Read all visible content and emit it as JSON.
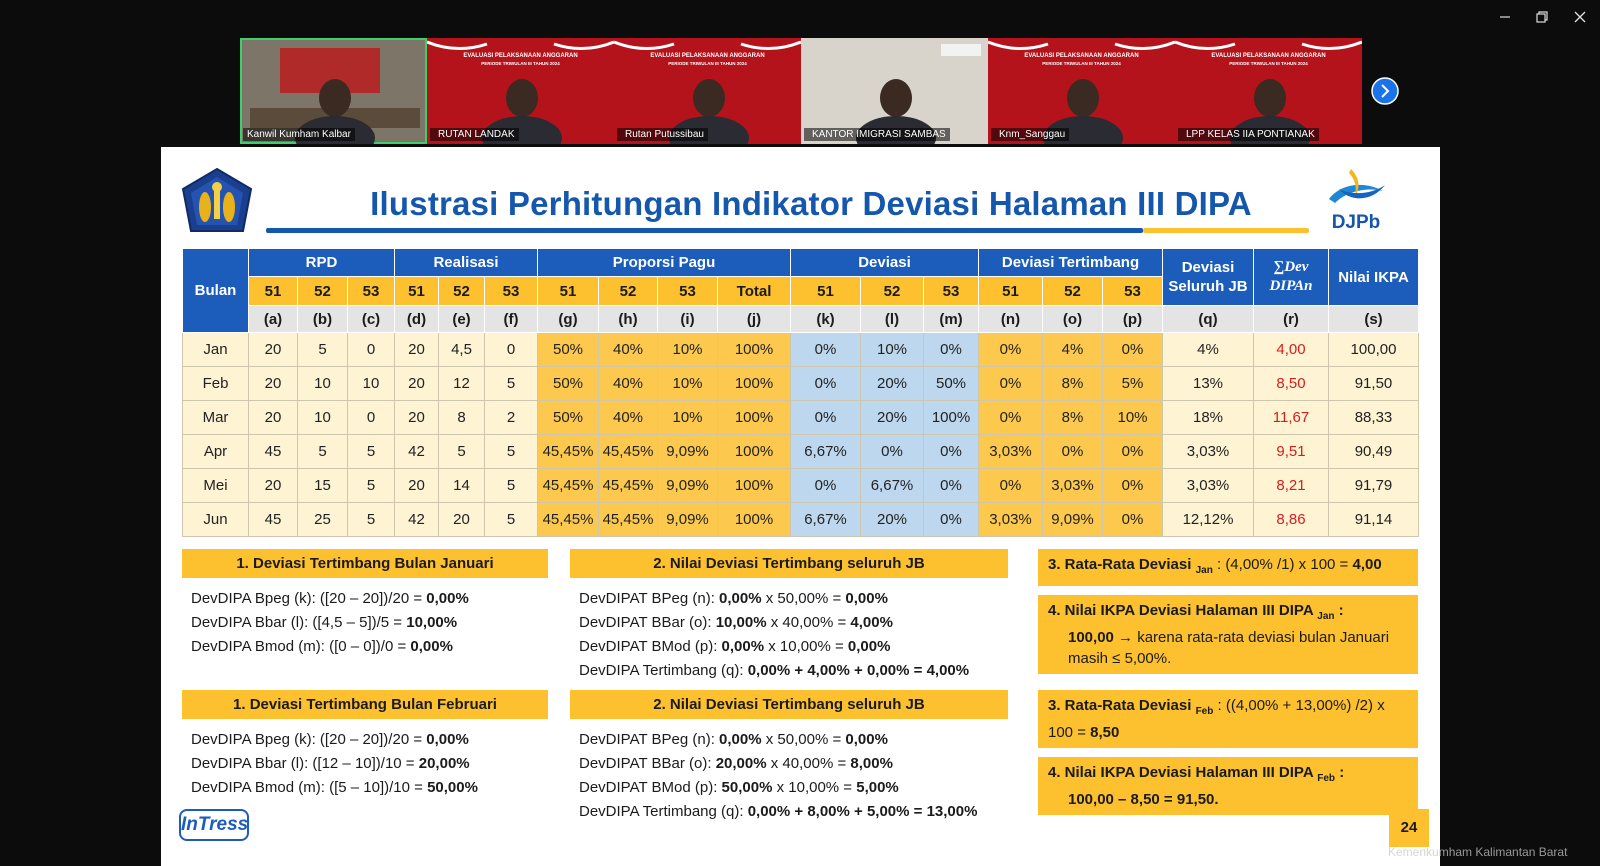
{
  "participants": [
    {
      "name": "Kanwil Kumham Kalbar"
    },
    {
      "name": "RUTAN LANDAK"
    },
    {
      "name": "Rutan Putussibau"
    },
    {
      "name": "KANTOR IMIGRASI SAMBAS"
    },
    {
      "name": "Knm_Sanggau"
    },
    {
      "name": "LPP KELAS IIA PONTIANAK"
    }
  ],
  "slide_banner": {
    "title": "EVALUASI PELAKSANAAN ANGGARAN",
    "subtitle": "PERIODE TRIWULAN III TAHUN 2024"
  },
  "slide": {
    "title": "Ilustrasi Perhitungan Indikator Deviasi Halaman III DIPA",
    "logo_right": "DJPb",
    "table": {
      "header_groups": [
        "Bulan",
        "RPD",
        "Realisasi",
        "Proporsi Pagu",
        "Deviasi",
        "Deviasi Tertimbang",
        "Deviasi Seluruh JB",
        "∑Dev DIPAn",
        "Nilai IKPA"
      ],
      "sub_headers": [
        "51",
        "52",
        "53",
        "51",
        "52",
        "53",
        "51",
        "52",
        "53",
        "Total",
        "51",
        "52",
        "53",
        "51",
        "52",
        "53"
      ],
      "letters": [
        "(a)",
        "(b)",
        "(c)",
        "(d)",
        "(e)",
        "(f)",
        "(g)",
        "(h)",
        "(i)",
        "(j)",
        "(k)",
        "(l)",
        "(m)",
        "(n)",
        "(o)",
        "(p)",
        "(q)",
        "(r)",
        "(s)"
      ],
      "rows": [
        [
          "Jan",
          "20",
          "5",
          "0",
          "20",
          "4,5",
          "0",
          "50%",
          "40%",
          "10%",
          "100%",
          "0%",
          "10%",
          "0%",
          "0%",
          "4%",
          "0%",
          "4%",
          "4,00",
          "100,00"
        ],
        [
          "Feb",
          "20",
          "10",
          "10",
          "20",
          "12",
          "5",
          "50%",
          "40%",
          "10%",
          "100%",
          "0%",
          "20%",
          "50%",
          "0%",
          "8%",
          "5%",
          "13%",
          "8,50",
          "91,50"
        ],
        [
          "Mar",
          "20",
          "10",
          "0",
          "20",
          "8",
          "2",
          "50%",
          "40%",
          "10%",
          "100%",
          "0%",
          "20%",
          "100%",
          "0%",
          "8%",
          "10%",
          "18%",
          "11,67",
          "88,33"
        ],
        [
          "Apr",
          "45",
          "5",
          "5",
          "42",
          "5",
          "5",
          "45,45%",
          "45,45%",
          "9,09%",
          "100%",
          "6,67%",
          "0%",
          "0%",
          "3,03%",
          "0%",
          "0%",
          "3,03%",
          "9,51",
          "90,49"
        ],
        [
          "Mei",
          "20",
          "15",
          "5",
          "20",
          "14",
          "5",
          "45,45%",
          "45,45%",
          "9,09%",
          "100%",
          "0%",
          "6,67%",
          "0%",
          "0%",
          "3,03%",
          "0%",
          "3,03%",
          "8,21",
          "91,79"
        ],
        [
          "Jun",
          "45",
          "25",
          "5",
          "42",
          "20",
          "5",
          "45,45%",
          "45,45%",
          "9,09%",
          "100%",
          "6,67%",
          "20%",
          "0%",
          "3,03%",
          "9,09%",
          "0%",
          "12,12%",
          "8,86",
          "91,14"
        ]
      ]
    },
    "sections": [
      {
        "left": {
          "heading": "1. Deviasi Tertimbang Bulan Januari",
          "lines": [
            [
              {
                "text": "DevDIPA Bpeg (k): ([20 – 20])/20 = ",
                "style": "normal"
              },
              {
                "text": "0,00%",
                "style": "bold"
              }
            ],
            [
              {
                "text": "DevDIPA Bbar (l): ([4,5 – 5])/5 = ",
                "style": "normal"
              },
              {
                "text": "10,00%",
                "style": "bold"
              }
            ],
            [
              {
                "text": "DevDIPA Bmod (m): ([0 – 0])/0 = ",
                "style": "normal"
              },
              {
                "text": "0,00%",
                "style": "bold"
              }
            ]
          ]
        },
        "middle": {
          "heading": "2. Nilai Deviasi Tertimbang seluruh JB",
          "lines": [
            [
              {
                "text": "DevDIPAT BPeg (n): ",
                "style": "normal"
              },
              {
                "text": "0,00%",
                "style": "bold"
              },
              {
                "text": " x 50,00% = ",
                "style": "normal"
              },
              {
                "text": "0,00%",
                "style": "bold"
              }
            ],
            [
              {
                "text": "DevDIPAT BBar (o): ",
                "style": "normal"
              },
              {
                "text": "10,00%",
                "style": "bold"
              },
              {
                "text": " x 40,00% = ",
                "style": "normal"
              },
              {
                "text": "4,00%",
                "style": "bold"
              }
            ],
            [
              {
                "text": "DevDIPAT BMod (p): ",
                "style": "normal"
              },
              {
                "text": "0,00%",
                "style": "bold"
              },
              {
                "text": " x 10,00% = ",
                "style": "normal"
              },
              {
                "text": "0,00%",
                "style": "bold"
              }
            ],
            [
              {
                "text": "DevDIPA Tertimbang (q): ",
                "style": "normal"
              },
              {
                "text": "0,00% + 4,00% + 0,00% = 4,00%",
                "style": "bold"
              }
            ]
          ]
        },
        "right": [
          [
            [
              {
                "text": "3. Rata-Rata Deviasi ",
                "style": "bold"
              },
              {
                "text": "Jan",
                "style": "sub"
              },
              {
                "text": " : (4,00% /1) x 100 = ",
                "style": "normal"
              },
              {
                "text": "4,00",
                "style": "bold"
              }
            ]
          ],
          [
            [
              {
                "text": "4. Nilai IKPA Deviasi Halaman III DIPA ",
                "style": "bold"
              },
              {
                "text": "Jan",
                "style": "sub"
              },
              {
                "text": " :",
                "style": "bold"
              }
            ],
            [
              {
                "text": "100,00 → ",
                "style": "bold"
              },
              {
                "text": "karena rata-rata deviasi bulan Januari masih ≤ 5,00%.",
                "style": "normal"
              }
            ]
          ]
        ]
      },
      {
        "left": {
          "heading": "1. Deviasi Tertimbang Bulan Februari",
          "lines": [
            [
              {
                "text": "DevDIPA Bpeg (k): ([20 – 20])/20 = ",
                "style": "normal"
              },
              {
                "text": "0,00%",
                "style": "bold"
              }
            ],
            [
              {
                "text": "DevDIPA Bbar (l): ([12 – 10])/10 = ",
                "style": "normal"
              },
              {
                "text": "20,00%",
                "style": "bold"
              }
            ],
            [
              {
                "text": "DevDIPA Bmod (m): ([5 – 10])/10 = ",
                "style": "normal"
              },
              {
                "text": "50,00%",
                "style": "bold"
              }
            ]
          ]
        },
        "middle": {
          "heading": "2. Nilai Deviasi Tertimbang seluruh JB",
          "lines": [
            [
              {
                "text": "DevDIPAT BPeg (n): ",
                "style": "normal"
              },
              {
                "text": "0,00%",
                "style": "bold"
              },
              {
                "text": " x 50,00% = ",
                "style": "normal"
              },
              {
                "text": "0,00%",
                "style": "bold"
              }
            ],
            [
              {
                "text": "DevDIPAT BBar (o): ",
                "style": "normal"
              },
              {
                "text": "20,00%",
                "style": "bold"
              },
              {
                "text": " x 40,00% = ",
                "style": "normal"
              },
              {
                "text": "8,00%",
                "style": "bold"
              }
            ],
            [
              {
                "text": "DevDIPAT BMod (p): ",
                "style": "normal"
              },
              {
                "text": "50,00%",
                "style": "bold"
              },
              {
                "text": " x 10,00% = ",
                "style": "normal"
              },
              {
                "text": "5,00%",
                "style": "bold"
              }
            ],
            [
              {
                "text": "DevDIPA Tertimbang (q): ",
                "style": "normal"
              },
              {
                "text": "0,00% + 8,00% + 5,00% = 13,00%",
                "style": "bold"
              }
            ]
          ]
        },
        "right": [
          [
            [
              {
                "text": "3. Rata-Rata Deviasi ",
                "style": "bold"
              },
              {
                "text": "Feb",
                "style": "sub"
              },
              {
                "text": " : ((4,00% + 13,00%) /2) x 100 = ",
                "style": "normal"
              },
              {
                "text": "8,50",
                "style": "bold"
              }
            ]
          ],
          [
            [
              {
                "text": "4. Nilai IKPA Deviasi Halaman III DIPA ",
                "style": "bold"
              },
              {
                "text": "Feb",
                "style": "sub"
              },
              {
                "text": " :",
                "style": "bold"
              }
            ],
            [
              {
                "text": "100,00 – 8,50 = 91,50.",
                "style": "bold"
              }
            ]
          ]
        ]
      }
    ],
    "footer_logo": "InTress",
    "page_number": "24"
  },
  "watermark": "Kemenkumham Kalimantan Barat"
}
